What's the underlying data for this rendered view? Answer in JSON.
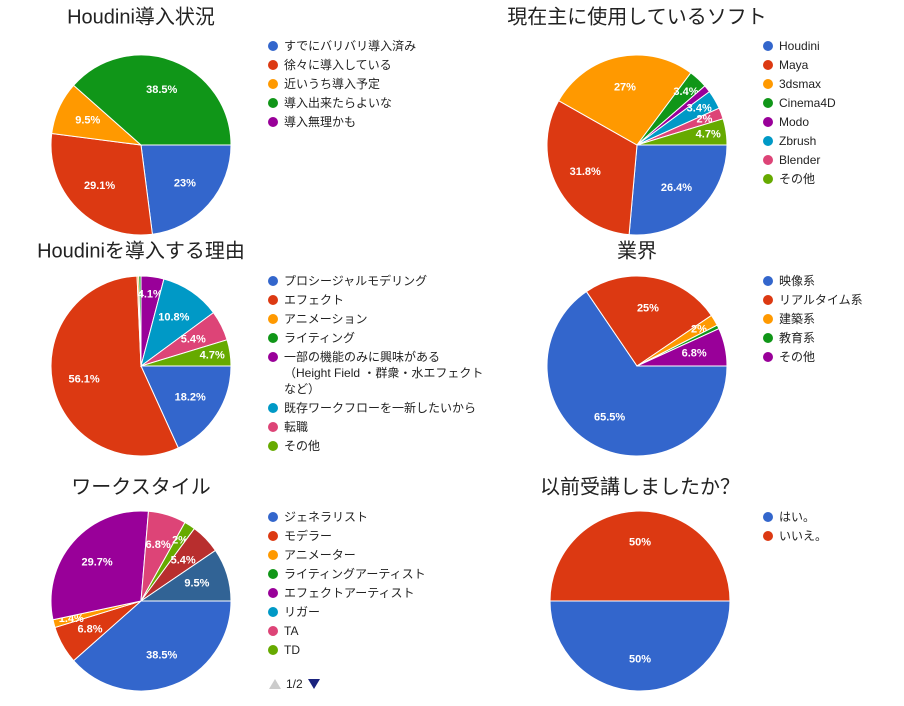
{
  "chart_data": [
    {
      "type": "pie",
      "title": "Houdini導入状況",
      "categories": [
        "すでにバリバリ導入済み",
        "徐々に導入している",
        "近いうち導入予定",
        "導入出来たらよいな",
        "導入無理かも"
      ],
      "values": [
        23,
        29.1,
        9.5,
        38.5,
        0
      ],
      "value_labels": [
        "23%",
        "29.1%",
        "9.5%",
        "38.5%",
        null
      ],
      "colors": [
        "#3366cc",
        "#dc3912",
        "#ff9900",
        "#109618",
        "#990099"
      ]
    },
    {
      "type": "pie",
      "title": "現在主に使用しているソフト",
      "categories": [
        "Houdini",
        "Maya",
        "3dsmax",
        "Cinema4D",
        "Modo",
        "Zbrush",
        "Blender",
        "その他"
      ],
      "values": [
        26.4,
        31.8,
        27,
        3.4,
        1.3,
        3.4,
        2,
        4.7
      ],
      "value_labels": [
        "26.4%",
        "31.8%",
        "27%",
        "3.4%",
        null,
        "3.4%",
        "2%",
        "4.7%"
      ],
      "colors": [
        "#3366cc",
        "#dc3912",
        "#ff9900",
        "#109618",
        "#990099",
        "#0099c6",
        "#dd4477",
        "#66aa00"
      ]
    },
    {
      "type": "pie",
      "title": "Houdiniを導入する理由",
      "categories": [
        "プロシージャルモデリング",
        "エフェクト",
        "アニメーション",
        "ライティング",
        "一部の機能のみに興味がある\n（Height Field ・群衆・水エフェクト\nなど）",
        "既存ワークフローを一新したいから",
        "転職",
        "その他"
      ],
      "values": [
        18.2,
        56.1,
        0.3,
        0.4,
        4.1,
        10.8,
        5.4,
        4.7
      ],
      "value_labels": [
        "18.2%",
        "56.1%",
        null,
        null,
        "4.1%",
        "10.8%",
        "5.4%",
        "4.7%"
      ],
      "colors": [
        "#3366cc",
        "#dc3912",
        "#ff9900",
        "#109618",
        "#990099",
        "#0099c6",
        "#dd4477",
        "#66aa00"
      ]
    },
    {
      "type": "pie",
      "title": "業界",
      "categories": [
        "映像系",
        "リアルタイム系",
        "建築系",
        "教育系",
        "その他"
      ],
      "values": [
        65.5,
        25,
        2,
        0.7,
        6.8
      ],
      "value_labels": [
        "65.5%",
        "25%",
        "2%",
        null,
        "6.8%"
      ],
      "colors": [
        "#3366cc",
        "#dc3912",
        "#ff9900",
        "#109618",
        "#990099"
      ]
    },
    {
      "type": "pie",
      "title": "ワークスタイル",
      "categories": [
        "ジェネラリスト",
        "モデラー",
        "アニメーター",
        "ライティングアーティスト",
        "エフェクトアーティスト",
        "リガー",
        "TA",
        "TD",
        null,
        null
      ],
      "values": [
        38.5,
        6.8,
        1.4,
        0,
        29.7,
        0,
        6.8,
        2,
        5.4,
        9.5
      ],
      "value_labels": [
        "38.5%",
        "6.8%",
        "1.4%",
        null,
        "29.7%",
        null,
        "6.8%",
        "2%",
        "5.4%",
        "9.5%"
      ],
      "colors": [
        "#3366cc",
        "#dc3912",
        "#ff9900",
        "#109618",
        "#990099",
        "#0099c6",
        "#dd4477",
        "#66aa00",
        "#b82e2e",
        "#316395"
      ],
      "legend_page": "1/2"
    },
    {
      "type": "pie",
      "title": "以前受講しましたか？",
      "categories": [
        "はい。",
        "いいえ。"
      ],
      "values": [
        50,
        50
      ],
      "value_labels": [
        "50%",
        "50%"
      ],
      "colors": [
        "#3366cc",
        "#dc3912"
      ]
    }
  ]
}
